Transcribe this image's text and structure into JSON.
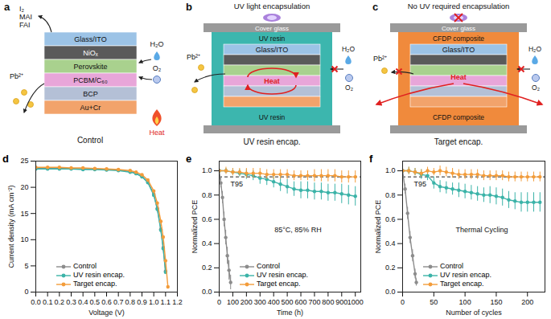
{
  "diagrams": [
    {
      "panel_label": "a",
      "layers": [
        "Glass/ITO",
        "NiOₓ",
        "Perovskite",
        "PCBM/C₆₀",
        "BCP",
        "Au+Cr"
      ],
      "released": [
        "I₂",
        "MAI",
        "FAI"
      ],
      "lead": "Pb²⁺",
      "water": "H₂O",
      "oxygen": "O₂",
      "heat": "Heat",
      "caption": "Control"
    },
    {
      "panel_label": "b",
      "title": "UV light encapsulation",
      "cover": "Cover glass",
      "encapsulant": "UV resin",
      "encapsulant_bottom": "UV resin",
      "layers": [
        "Glass/ITO"
      ],
      "lead": "Pb²⁺",
      "water": "H₂O",
      "oxygen": "O₂",
      "heat": "Heat",
      "caption": "UV resin encap."
    },
    {
      "panel_label": "c",
      "title": "No UV required encapsulation",
      "cover": "Cover glass",
      "encapsulant": "CFDP composite",
      "encapsulant_bottom": "CFDP composite",
      "layers": [
        "Glass/ITO"
      ],
      "lead": "Pb²⁺",
      "water": "H₂O",
      "oxygen": "O₂",
      "heat": "Heat",
      "caption": "Target encap."
    }
  ],
  "chart_data": [
    {
      "panel_label": "d",
      "type": "line",
      "x_label": "Voltage (V)",
      "y_label": "Current density (mA cm⁻²)",
      "x": [
        0,
        0.1,
        0.2,
        0.3,
        0.4,
        0.5,
        0.6,
        0.7,
        0.8,
        0.85,
        0.9,
        0.95,
        1.0,
        1.03,
        1.06,
        1.08,
        1.1,
        1.12
      ],
      "series": [
        {
          "name": "Control",
          "color": "#8c8c8c",
          "marker": "circle",
          "values": [
            23.6,
            23.6,
            23.6,
            23.6,
            23.5,
            23.5,
            23.4,
            23.3,
            23.0,
            22.7,
            22.1,
            21.0,
            18.7,
            16.0,
            12.0,
            8.5,
            4.0,
            null
          ]
        },
        {
          "name": "UV resin encap.",
          "color": "#3bb3a8",
          "marker": "circle",
          "values": [
            23.5,
            23.5,
            23.5,
            23.5,
            23.4,
            23.4,
            23.3,
            23.2,
            22.9,
            22.6,
            22.0,
            20.9,
            18.5,
            15.8,
            11.8,
            8.3,
            3.8,
            null
          ]
        },
        {
          "name": "Target encap.",
          "color": "#f39c3a",
          "marker": "circle",
          "values": [
            23.8,
            23.8,
            23.8,
            23.7,
            23.7,
            23.6,
            23.5,
            23.4,
            23.2,
            22.9,
            22.4,
            21.4,
            19.3,
            17.0,
            13.5,
            10.5,
            6.0,
            1.0
          ]
        }
      ],
      "xlim": [
        0,
        1.2
      ],
      "xticks": [
        {
          "value": 0,
          "label": "0.0"
        },
        {
          "value": 0.1,
          "label": "0.1"
        },
        {
          "value": 0.2,
          "label": "0.2"
        },
        {
          "value": 0.3,
          "label": "0.3"
        },
        {
          "value": 0.4,
          "label": "0.4"
        },
        {
          "value": 0.5,
          "label": "0.5"
        },
        {
          "value": 0.6,
          "label": "0.6"
        },
        {
          "value": 0.7,
          "label": "0.7"
        },
        {
          "value": 0.8,
          "label": "0.8"
        },
        {
          "value": 0.9,
          "label": "0.9"
        },
        {
          "value": 1,
          "label": "1.0"
        },
        {
          "value": 1.1,
          "label": "1.1"
        },
        {
          "value": 1.2,
          "label": "1.2"
        }
      ],
      "ylim": [
        0,
        25
      ],
      "yticks": [
        0,
        5,
        10,
        15,
        20,
        25
      ],
      "grid": false,
      "legend": "lower left"
    },
    {
      "panel_label": "e",
      "type": "line",
      "x_label": "Time (h)",
      "y_label": "Normalized PCE",
      "annotations": [
        "T95",
        "85°C, 85% RH"
      ],
      "reference_line": 0.95,
      "series": [
        {
          "name": "Control",
          "color": "#8c8c8c",
          "marker": "circle",
          "x": [
            0,
            12,
            24,
            36,
            48,
            60,
            72,
            84
          ],
          "values": [
            1.0,
            0.9,
            0.78,
            0.6,
            0.45,
            0.3,
            0.18,
            0.08
          ],
          "errors": [
            0.02,
            0.04,
            0.05,
            0.06,
            0.06,
            0.07,
            0.08,
            0.06
          ]
        },
        {
          "name": "UV resin encap.",
          "color": "#3bb3a8",
          "marker": "circle",
          "x": [
            0,
            50,
            100,
            150,
            200,
            250,
            300,
            350,
            400,
            450,
            500,
            550,
            600,
            650,
            700,
            750,
            800,
            850,
            900,
            950,
            1000
          ],
          "values": [
            1.0,
            1.0,
            0.99,
            0.98,
            0.97,
            0.96,
            0.94,
            0.93,
            0.91,
            0.89,
            0.87,
            0.85,
            0.84,
            0.84,
            0.83,
            0.83,
            0.82,
            0.82,
            0.81,
            0.8,
            0.79
          ],
          "errors": [
            0.02,
            0.02,
            0.03,
            0.03,
            0.04,
            0.04,
            0.05,
            0.05,
            0.05,
            0.06,
            0.06,
            0.06,
            0.07,
            0.07,
            0.07,
            0.07,
            0.07,
            0.07,
            0.08,
            0.08,
            0.08
          ]
        },
        {
          "name": "Target encap.",
          "color": "#f39c3a",
          "marker": "circle",
          "x": [
            0,
            50,
            100,
            150,
            200,
            250,
            300,
            350,
            400,
            450,
            500,
            550,
            600,
            650,
            700,
            750,
            800,
            850,
            900,
            950,
            1000
          ],
          "values": [
            1.0,
            1.0,
            0.99,
            0.99,
            0.98,
            0.98,
            0.98,
            0.97,
            0.97,
            0.97,
            0.97,
            0.96,
            0.96,
            0.96,
            0.96,
            0.96,
            0.96,
            0.96,
            0.95,
            0.95,
            0.95
          ],
          "errors": [
            0.02,
            0.03,
            0.03,
            0.03,
            0.04,
            0.04,
            0.04,
            0.04,
            0.04,
            0.04,
            0.04,
            0.04,
            0.04,
            0.04,
            0.05,
            0.05,
            0.05,
            0.05,
            0.05,
            0.05,
            0.05
          ]
        }
      ],
      "xlim": [
        0,
        1040
      ],
      "xticks": [
        0,
        100,
        200,
        300,
        400,
        500,
        600,
        700,
        800,
        900,
        1000
      ],
      "ylim": [
        0,
        1.08
      ],
      "yticks": [
        {
          "value": 0,
          "label": "0.0"
        },
        {
          "value": 0.2,
          "label": "0.2"
        },
        {
          "value": 0.4,
          "label": "0.4"
        },
        {
          "value": 0.6,
          "label": "0.6"
        },
        {
          "value": 0.8,
          "label": "0.8"
        },
        {
          "value": 1,
          "label": "1.0"
        }
      ],
      "grid": false,
      "legend": "lower left"
    },
    {
      "panel_label": "f",
      "type": "line",
      "x_label": "Number of cycles",
      "y_label": "Normalized PCE",
      "annotations": [
        "T95",
        "Thermal Cycling"
      ],
      "reference_line": 0.95,
      "series": [
        {
          "name": "Control",
          "color": "#8c8c8c",
          "marker": "circle",
          "x": [
            0,
            4,
            8,
            12,
            16,
            20,
            22
          ],
          "values": [
            1.0,
            0.85,
            0.65,
            0.45,
            0.3,
            0.15,
            0.08
          ],
          "errors": [
            0.02,
            0.04,
            0.05,
            0.05,
            0.05,
            0.04,
            0.03
          ]
        },
        {
          "name": "UV resin encap.",
          "color": "#3bb3a8",
          "marker": "circle",
          "x": [
            0,
            10,
            20,
            30,
            40,
            50,
            60,
            70,
            80,
            90,
            100,
            110,
            120,
            130,
            140,
            150,
            160,
            170,
            180,
            190,
            200,
            210,
            220
          ],
          "values": [
            1.0,
            1.0,
            0.99,
            0.97,
            0.96,
            0.9,
            0.87,
            0.86,
            0.85,
            0.84,
            0.83,
            0.82,
            0.81,
            0.8,
            0.8,
            0.79,
            0.78,
            0.76,
            0.75,
            0.74,
            0.74,
            0.74,
            0.74
          ],
          "errors": [
            0.02,
            0.03,
            0.03,
            0.04,
            0.04,
            0.05,
            0.05,
            0.05,
            0.05,
            0.06,
            0.06,
            0.06,
            0.06,
            0.06,
            0.07,
            0.07,
            0.07,
            0.07,
            0.07,
            0.08,
            0.08,
            0.08,
            0.08
          ]
        },
        {
          "name": "Target encap.",
          "color": "#f39c3a",
          "marker": "circle",
          "x": [
            0,
            10,
            20,
            30,
            40,
            50,
            60,
            70,
            80,
            90,
            100,
            110,
            120,
            130,
            140,
            150,
            160,
            170,
            180,
            190,
            200,
            210,
            220
          ],
          "values": [
            1.0,
            1.0,
            0.99,
            0.98,
            1.0,
            0.99,
            1.0,
            0.99,
            0.98,
            0.97,
            0.97,
            0.97,
            0.97,
            0.96,
            0.96,
            0.96,
            0.96,
            0.95,
            0.95,
            0.95,
            0.95,
            0.95,
            0.95
          ],
          "errors": [
            0.02,
            0.03,
            0.03,
            0.03,
            0.03,
            0.03,
            0.04,
            0.04,
            0.04,
            0.04,
            0.04,
            0.04,
            0.04,
            0.04,
            0.04,
            0.04,
            0.04,
            0.04,
            0.04,
            0.04,
            0.04,
            0.04,
            0.04
          ]
        }
      ],
      "xlim": [
        0,
        228
      ],
      "xticks": [
        0,
        50,
        100,
        150,
        200
      ],
      "ylim": [
        0,
        1.08
      ],
      "yticks": [
        {
          "value": 0,
          "label": "0.0"
        },
        {
          "value": 0.2,
          "label": "0.2"
        },
        {
          "value": 0.4,
          "label": "0.4"
        },
        {
          "value": 0.6,
          "label": "0.6"
        },
        {
          "value": 0.8,
          "label": "0.8"
        },
        {
          "value": 1,
          "label": "1.0"
        }
      ],
      "grid": false,
      "legend": "lower left"
    }
  ]
}
